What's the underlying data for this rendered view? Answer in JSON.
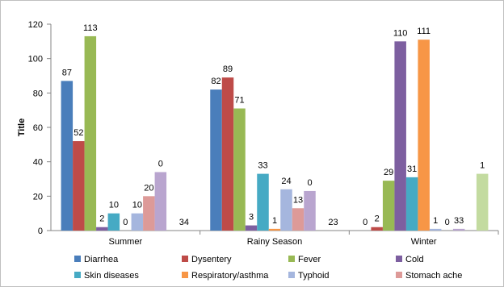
{
  "chart_data": {
    "type": "bar",
    "title": "",
    "xlabel": "",
    "ylabel": "Title",
    "ylim": [
      0,
      120
    ],
    "yticks": [
      0,
      20,
      40,
      60,
      80,
      100,
      120
    ],
    "grid": false,
    "legend_position": "bottom",
    "categories": [
      "Summer",
      "Rainy Season",
      "Winter"
    ],
    "series": [
      {
        "name": "Diarrhea",
        "color": "#4a7ebb",
        "values": [
          87,
          82,
          0
        ]
      },
      {
        "name": "Dysentery",
        "color": "#be4b48",
        "values": [
          52,
          89,
          2
        ]
      },
      {
        "name": "Fever",
        "color": "#98b954",
        "values": [
          113,
          71,
          29
        ]
      },
      {
        "name": "Cold",
        "color": "#7d5fa0",
        "values": [
          2,
          3,
          110
        ]
      },
      {
        "name": "Skin diseases",
        "color": "#46aac4",
        "values": [
          10,
          33,
          31
        ]
      },
      {
        "name": "Respiratory/asthma",
        "color": "#f79646",
        "values": [
          0,
          1,
          111
        ]
      },
      {
        "name": "Typhoid",
        "color": "#a5b6de",
        "values": [
          10,
          24,
          1
        ]
      },
      {
        "name": "Stomach ache",
        "color": "#dd9a98",
        "values": [
          20,
          13,
          0
        ]
      },
      {
        "name": "",
        "color": "#b9a5cf",
        "values": [
          34,
          23,
          1
        ]
      },
      {
        "name": "",
        "color": "#a0d4e4",
        "values": [
          null,
          null,
          null
        ]
      },
      {
        "name": "",
        "color": "#c3dba0",
        "values": [
          null,
          null,
          33
        ]
      }
    ],
    "data_labels": [
      [
        "87",
        "52",
        "113",
        "2",
        "10",
        "0",
        "10",
        "20",
        "0",
        "",
        "34"
      ],
      [
        "82",
        "89",
        "71",
        "3",
        "33",
        "1",
        "24",
        "13",
        "0",
        "",
        "23"
      ],
      [
        "0",
        "2",
        "29",
        "110",
        "31",
        "111",
        "1",
        "0",
        "33",
        "",
        "1"
      ]
    ]
  }
}
